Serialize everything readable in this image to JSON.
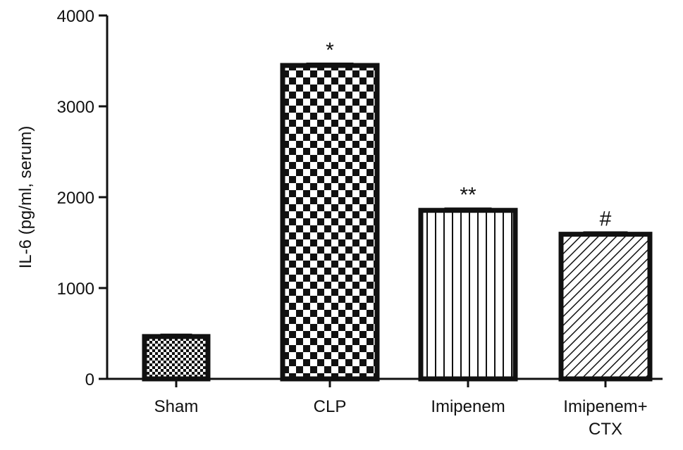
{
  "chart_data": {
    "type": "bar",
    "title": "",
    "xlabel": "",
    "ylabel": "IL-6 (pg/ml, serum)",
    "ylim": [
      0,
      4000
    ],
    "yticks": [
      0,
      1000,
      2000,
      3000,
      4000
    ],
    "yticks_labels": [
      "0",
      "1000",
      "2000",
      "3000",
      "4000"
    ],
    "grid": false,
    "categories": [
      {
        "line1": "Sham",
        "line2": ""
      },
      {
        "line1": "CLP",
        "line2": ""
      },
      {
        "line1": "Imipenem",
        "line2": ""
      },
      {
        "line1": "Imipenem+",
        "line2": "CTX"
      }
    ],
    "values": [
      466,
      3450,
      1855,
      1592
    ],
    "errors": [
      20,
      20,
      20,
      20
    ],
    "annotations": [
      "",
      "*",
      "**",
      "#"
    ],
    "patterns": [
      "fine-checker",
      "checker",
      "vertical-lines",
      "diagonal-lines"
    ],
    "colors": {
      "ink": "#111111",
      "background": "#ffffff"
    }
  }
}
